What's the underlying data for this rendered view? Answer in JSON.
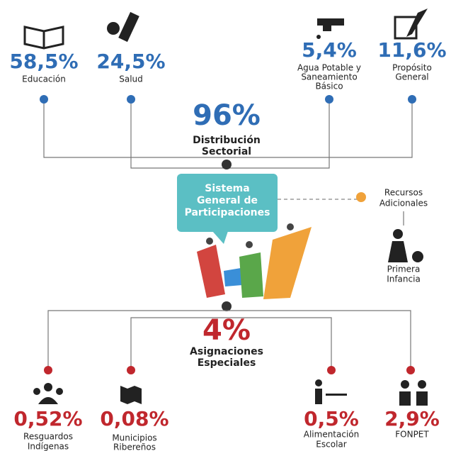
{
  "sectoral": {
    "percent": "96%",
    "label": [
      "Distribución",
      "Sectorial"
    ],
    "items": [
      {
        "percent": "58,5%",
        "label": [
          "Educación"
        ]
      },
      {
        "percent": "24,5%",
        "label": [
          "Salud"
        ]
      },
      {
        "percent": "5,4%",
        "label": [
          "Agua Potable y",
          "Saneamiento",
          "Básico"
        ]
      },
      {
        "percent": "11,6%",
        "label": [
          "Propósito",
          "General"
        ]
      }
    ]
  },
  "center": {
    "label": [
      "Sistema",
      "General de",
      "Participaciones"
    ]
  },
  "additional": {
    "label": [
      "Recursos",
      "Adicionales"
    ],
    "item": [
      "Primera",
      "Infancia"
    ]
  },
  "special": {
    "percent": "4%",
    "label": [
      "Asignaciones",
      "Especiales"
    ],
    "items": [
      {
        "percent": "0,52%",
        "label": [
          "Resguardos",
          "Indígenas"
        ]
      },
      {
        "percent": "0,08%",
        "label": [
          "Municipios",
          "Ribereños"
        ]
      },
      {
        "percent": "0,5%",
        "label": [
          "Alimentación",
          "Escolar"
        ]
      },
      {
        "percent": "2,9%",
        "label": [
          "FONPET"
        ]
      }
    ]
  }
}
